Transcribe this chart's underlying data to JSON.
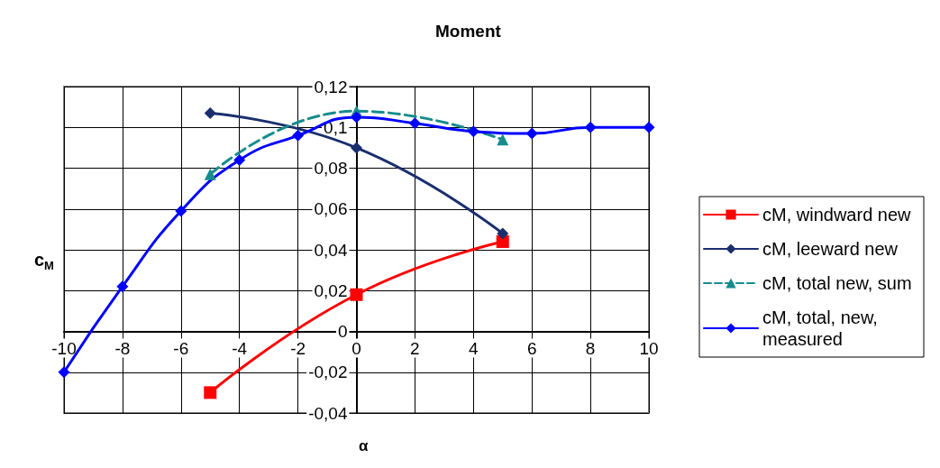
{
  "chart_data": {
    "type": "line",
    "title": "Moment",
    "xlabel": "α",
    "ylabel": "c$_{M}$",
    "xlim": [
      -10,
      10
    ],
    "xticks": [
      -10,
      -8,
      -6,
      -4,
      -2,
      0,
      2,
      4,
      6,
      8,
      10
    ],
    "ylim": [
      -0.04,
      0.12
    ],
    "yticks": [
      {
        "value": -0.04,
        "label": "-0,04"
      },
      {
        "value": -0.02,
        "label": "-0,02"
      },
      {
        "value": 0,
        "label": "0"
      },
      {
        "value": 0.02,
        "label": "0,02"
      },
      {
        "value": 0.04,
        "label": "0,04"
      },
      {
        "value": 0.06,
        "label": "0,06"
      },
      {
        "value": 0.08,
        "label": "0,08"
      },
      {
        "value": 0.1,
        "label": "0,1"
      },
      {
        "value": 0.12,
        "label": "0,12"
      }
    ],
    "grid": true,
    "legend": "right",
    "series": [
      {
        "name": "cM, windward new",
        "color": "#ff0000",
        "marker": "square",
        "line_style": "solid",
        "x": [
          -5,
          0,
          5
        ],
        "values": [
          -0.03,
          0.018,
          0.044
        ]
      },
      {
        "name": "cM, leeward new",
        "color": "#1a2e6e",
        "marker": "diamond",
        "line_style": "solid",
        "x": [
          -5,
          0,
          5
        ],
        "values": [
          0.107,
          0.09,
          0.048
        ]
      },
      {
        "name": "cM, total new, sum",
        "color": "#168c8c",
        "marker": "triangle",
        "line_style": "dashed",
        "x": [
          -5,
          0,
          5
        ],
        "values": [
          0.077,
          0.108,
          0.094
        ]
      },
      {
        "name": "cM, total, new, measured",
        "color": "#0000ff",
        "marker": "diamond",
        "line_style": "solid",
        "x": [
          -10,
          -8,
          -6,
          -4,
          -2,
          0,
          2,
          4,
          6,
          8,
          10
        ],
        "values": [
          -0.02,
          0.022,
          0.059,
          0.084,
          0.096,
          0.105,
          0.102,
          0.098,
          0.097,
          0.1,
          0.1
        ]
      }
    ]
  }
}
